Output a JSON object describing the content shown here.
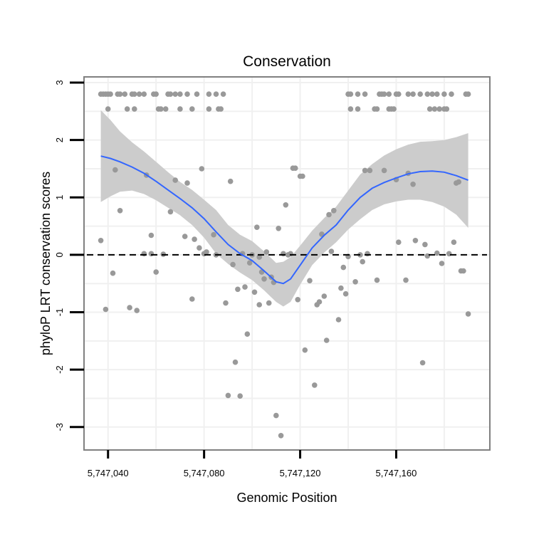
{
  "chart_data": {
    "type": "scatter",
    "title": "Conservation",
    "xlabel": "Genomic Position",
    "ylabel": "phyloP LRT conservation scores",
    "xlim": [
      5747030,
      5747199
    ],
    "ylim": [
      -3.4,
      3.1
    ],
    "x_ticks": [
      5747040,
      5747080,
      5747120,
      5747160
    ],
    "x_tick_labels": [
      "5,747,040",
      "5,747,080",
      "5,747,120",
      "5,747,160"
    ],
    "y_ticks": [
      -3,
      -2,
      -1,
      0,
      1,
      2,
      3
    ],
    "y_tick_labels": [
      "-3",
      "-2",
      "-1",
      "0",
      "1",
      "2",
      "3"
    ],
    "reference_line": {
      "y": 0,
      "style": "dashed"
    },
    "colors": {
      "points": "#999999",
      "smooth": "#3366FF",
      "band": "#CCCCCC",
      "grid": "#F0F0F0",
      "frame": "#808080",
      "refline": "#000000"
    },
    "points": [
      [
        5747037,
        2.8
      ],
      [
        5747038,
        2.8
      ],
      [
        5747039,
        2.8
      ],
      [
        5747040,
        2.8
      ],
      [
        5747041,
        2.8
      ],
      [
        5747044,
        2.8
      ],
      [
        5747045,
        2.8
      ],
      [
        5747047,
        2.8
      ],
      [
        5747050,
        2.8
      ],
      [
        5747051,
        2.8
      ],
      [
        5747053,
        2.8
      ],
      [
        5747055,
        2.8
      ],
      [
        5747059,
        2.8
      ],
      [
        5747060,
        2.8
      ],
      [
        5747065,
        2.8
      ],
      [
        5747066,
        2.8
      ],
      [
        5747068,
        2.8
      ],
      [
        5747070,
        2.8
      ],
      [
        5747073,
        2.8
      ],
      [
        5747077,
        2.8
      ],
      [
        5747082,
        2.8
      ],
      [
        5747085,
        2.8
      ],
      [
        5747088,
        2.8
      ],
      [
        5747040,
        2.54
      ],
      [
        5747048,
        2.54
      ],
      [
        5747051,
        2.54
      ],
      [
        5747061,
        2.54
      ],
      [
        5747062,
        2.54
      ],
      [
        5747064,
        2.54
      ],
      [
        5747070,
        2.54
      ],
      [
        5747075,
        2.54
      ],
      [
        5747082,
        2.54
      ],
      [
        5747086,
        2.54
      ],
      [
        5747087,
        2.54
      ],
      [
        5747140,
        2.8
      ],
      [
        5747141,
        2.8
      ],
      [
        5747144,
        2.8
      ],
      [
        5747147,
        2.8
      ],
      [
        5747153,
        2.8
      ],
      [
        5747154,
        2.8
      ],
      [
        5747155,
        2.8
      ],
      [
        5747157,
        2.8
      ],
      [
        5747160,
        2.8
      ],
      [
        5747161,
        2.8
      ],
      [
        5747165,
        2.8
      ],
      [
        5747167,
        2.8
      ],
      [
        5747170,
        2.8
      ],
      [
        5747173,
        2.8
      ],
      [
        5747175,
        2.8
      ],
      [
        5747177,
        2.8
      ],
      [
        5747180,
        2.8
      ],
      [
        5747183,
        2.8
      ],
      [
        5747189,
        2.8
      ],
      [
        5747190,
        2.8
      ],
      [
        5747141,
        2.54
      ],
      [
        5747144,
        2.54
      ],
      [
        5747151,
        2.54
      ],
      [
        5747152,
        2.54
      ],
      [
        5747157,
        2.54
      ],
      [
        5747158,
        2.54
      ],
      [
        5747159,
        2.54
      ],
      [
        5747174,
        2.54
      ],
      [
        5747176,
        2.54
      ],
      [
        5747178,
        2.54
      ],
      [
        5747180,
        2.54
      ],
      [
        5747181,
        2.54
      ],
      [
        5747037,
        0.25
      ],
      [
        5747039,
        -0.95
      ],
      [
        5747042,
        -0.32
      ],
      [
        5747043,
        1.48
      ],
      [
        5747045,
        0.77
      ],
      [
        5747049,
        -0.92
      ],
      [
        5747052,
        -0.97
      ],
      [
        5747055,
        0.02
      ],
      [
        5747056,
        1.39
      ],
      [
        5747058,
        0.02
      ],
      [
        5747058,
        0.34
      ],
      [
        5747060,
        -0.3
      ],
      [
        5747063,
        0.01
      ],
      [
        5747066,
        0.75
      ],
      [
        5747068,
        1.3
      ],
      [
        5747072,
        0.32
      ],
      [
        5747073,
        1.25
      ],
      [
        5747075,
        -0.77
      ],
      [
        5747076,
        0.27
      ],
      [
        5747078,
        0.12
      ],
      [
        5747079,
        1.5
      ],
      [
        5747080,
        0.02
      ],
      [
        5747081,
        0.05
      ],
      [
        5747084,
        0.35
      ],
      [
        5747085,
        0.0
      ],
      [
        5747089,
        -0.84
      ],
      [
        5747091,
        1.28
      ],
      [
        5747090,
        -2.45
      ],
      [
        5747092,
        -0.17
      ],
      [
        5747093,
        -1.87
      ],
      [
        5747094,
        -0.6
      ],
      [
        5747095,
        -2.46
      ],
      [
        5747096,
        0.02
      ],
      [
        5747097,
        -0.56
      ],
      [
        5747098,
        -1.38
      ],
      [
        5747099,
        -0.14
      ],
      [
        5747100,
        0.0
      ],
      [
        5747101,
        -0.65
      ],
      [
        5747102,
        0.48
      ],
      [
        5747103,
        -0.04
      ],
      [
        5747103,
        -0.87
      ],
      [
        5747104,
        -0.3
      ],
      [
        5747105,
        -0.42
      ],
      [
        5747106,
        0.05
      ],
      [
        5747107,
        -0.84
      ],
      [
        5747108,
        -0.39
      ],
      [
        5747109,
        -0.48
      ],
      [
        5747110,
        -2.8
      ],
      [
        5747111,
        0.46
      ],
      [
        5747112,
        -3.15
      ],
      [
        5747114,
        0.87
      ],
      [
        5747113,
        0.02
      ],
      [
        5747115,
        0.0
      ],
      [
        5747116,
        0.02
      ],
      [
        5747117,
        1.51
      ],
      [
        5747118,
        1.51
      ],
      [
        5747119,
        -0.78
      ],
      [
        5747120,
        1.37
      ],
      [
        5747121,
        1.37
      ],
      [
        5747122,
        -1.66
      ],
      [
        5747124,
        -0.45
      ],
      [
        5747126,
        -2.27
      ],
      [
        5747127,
        -0.87
      ],
      [
        5747128,
        -0.82
      ],
      [
        5747129,
        0.36
      ],
      [
        5747130,
        -0.72
      ],
      [
        5747131,
        -1.49
      ],
      [
        5747132,
        0.7
      ],
      [
        5747133,
        0.06
      ],
      [
        5747134,
        0.77
      ],
      [
        5747136,
        -1.13
      ],
      [
        5747137,
        -0.58
      ],
      [
        5747138,
        -0.22
      ],
      [
        5747139,
        -0.68
      ],
      [
        5747140,
        -0.03
      ],
      [
        5747143,
        -0.47
      ],
      [
        5747145,
        0.0
      ],
      [
        5747146,
        -0.12
      ],
      [
        5747147,
        1.47
      ],
      [
        5747148,
        0.02
      ],
      [
        5747149,
        1.47
      ],
      [
        5747152,
        -0.44
      ],
      [
        5747155,
        1.47
      ],
      [
        5747160,
        1.31
      ],
      [
        5747161,
        0.22
      ],
      [
        5747164,
        -0.44
      ],
      [
        5747165,
        1.42
      ],
      [
        5747167,
        1.23
      ],
      [
        5747168,
        0.25
      ],
      [
        5747171,
        -1.88
      ],
      [
        5747172,
        0.18
      ],
      [
        5747173,
        -0.02
      ],
      [
        5747177,
        0.03
      ],
      [
        5747179,
        -0.15
      ],
      [
        5747182,
        0.02
      ],
      [
        5747184,
        0.22
      ],
      [
        5747185,
        1.25
      ],
      [
        5747186,
        1.27
      ],
      [
        5747187,
        -0.28
      ],
      [
        5747188,
        -0.28
      ],
      [
        5747190,
        -1.03
      ]
    ],
    "smooth": [
      [
        5747037,
        1.72
      ],
      [
        5747041,
        1.68
      ],
      [
        5747045,
        1.62
      ],
      [
        5747050,
        1.53
      ],
      [
        5747055,
        1.42
      ],
      [
        5747060,
        1.28
      ],
      [
        5747065,
        1.13
      ],
      [
        5747070,
        0.98
      ],
      [
        5747075,
        0.82
      ],
      [
        5747080,
        0.63
      ],
      [
        5747085,
        0.4
      ],
      [
        5747090,
        0.18
      ],
      [
        5747095,
        0.02
      ],
      [
        5747100,
        -0.1
      ],
      [
        5747105,
        -0.28
      ],
      [
        5747110,
        -0.47
      ],
      [
        5747113,
        -0.5
      ],
      [
        5747116,
        -0.42
      ],
      [
        5747120,
        -0.18
      ],
      [
        5747125,
        0.12
      ],
      [
        5747130,
        0.34
      ],
      [
        5747135,
        0.52
      ],
      [
        5747140,
        0.78
      ],
      [
        5747145,
        1.0
      ],
      [
        5747150,
        1.16
      ],
      [
        5747155,
        1.26
      ],
      [
        5747160,
        1.34
      ],
      [
        5747165,
        1.41
      ],
      [
        5747170,
        1.45
      ],
      [
        5747175,
        1.46
      ],
      [
        5747180,
        1.44
      ],
      [
        5747185,
        1.38
      ],
      [
        5747190,
        1.3
      ]
    ],
    "band_upper": [
      [
        5747037,
        2.52
      ],
      [
        5747041,
        2.35
      ],
      [
        5747045,
        2.15
      ],
      [
        5747050,
        1.96
      ],
      [
        5747055,
        1.8
      ],
      [
        5747060,
        1.62
      ],
      [
        5747065,
        1.44
      ],
      [
        5747070,
        1.27
      ],
      [
        5747075,
        1.13
      ],
      [
        5747080,
        0.96
      ],
      [
        5747085,
        0.78
      ],
      [
        5747090,
        0.52
      ],
      [
        5747095,
        0.35
      ],
      [
        5747100,
        0.24
      ],
      [
        5747105,
        0.06
      ],
      [
        5747110,
        -0.14
      ],
      [
        5747113,
        -0.12
      ],
      [
        5747116,
        -0.04
      ],
      [
        5747120,
        0.16
      ],
      [
        5747125,
        0.42
      ],
      [
        5747130,
        0.64
      ],
      [
        5747135,
        0.84
      ],
      [
        5747140,
        1.12
      ],
      [
        5747145,
        1.4
      ],
      [
        5747150,
        1.58
      ],
      [
        5747155,
        1.73
      ],
      [
        5747160,
        1.84
      ],
      [
        5747165,
        1.92
      ],
      [
        5747170,
        1.97
      ],
      [
        5747175,
        1.98
      ],
      [
        5747180,
        2.0
      ],
      [
        5747185,
        2.05
      ],
      [
        5747190,
        2.12
      ]
    ],
    "band_lower": [
      [
        5747037,
        0.92
      ],
      [
        5747041,
        1.02
      ],
      [
        5747045,
        1.1
      ],
      [
        5747050,
        1.12
      ],
      [
        5747055,
        1.06
      ],
      [
        5747060,
        0.95
      ],
      [
        5747065,
        0.82
      ],
      [
        5747070,
        0.69
      ],
      [
        5747075,
        0.52
      ],
      [
        5747080,
        0.3
      ],
      [
        5747085,
        0.02
      ],
      [
        5747090,
        -0.16
      ],
      [
        5747095,
        -0.31
      ],
      [
        5747100,
        -0.44
      ],
      [
        5747105,
        -0.62
      ],
      [
        5747110,
        -0.82
      ],
      [
        5747113,
        -0.9
      ],
      [
        5747116,
        -0.82
      ],
      [
        5747120,
        -0.52
      ],
      [
        5747125,
        -0.18
      ],
      [
        5747130,
        0.04
      ],
      [
        5747135,
        0.22
      ],
      [
        5747140,
        0.44
      ],
      [
        5747145,
        0.62
      ],
      [
        5747150,
        0.78
      ],
      [
        5747155,
        0.88
      ],
      [
        5747160,
        0.93
      ],
      [
        5747165,
        0.96
      ],
      [
        5747170,
        0.96
      ],
      [
        5747175,
        0.92
      ],
      [
        5747180,
        0.84
      ],
      [
        5747185,
        0.7
      ],
      [
        5747190,
        0.47
      ]
    ]
  }
}
